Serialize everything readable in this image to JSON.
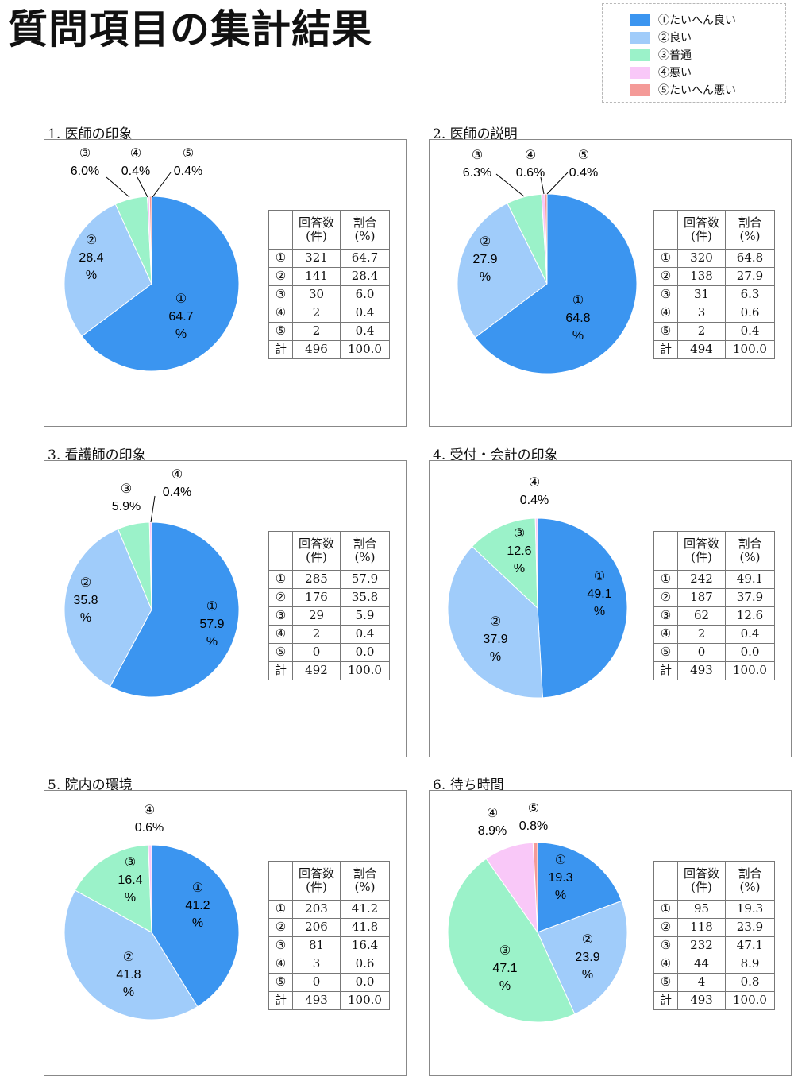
{
  "page_title": "質問項目の集計結果",
  "legend": {
    "items": [
      {
        "label": "①たいへん良い",
        "color": "#3B95F0"
      },
      {
        "label": "②良い",
        "color": "#A0CCFA"
      },
      {
        "label": "③普通",
        "color": "#9BF2C9"
      },
      {
        "label": "④悪い",
        "color": "#F9C8F8"
      },
      {
        "label": "⑤たいへん悪い",
        "color": "#F49A98"
      }
    ]
  },
  "table_headers": {
    "count": "回答数\n(件)",
    "ratio": "割合\n(%)"
  },
  "category_marks": [
    "①",
    "②",
    "③",
    "④",
    "⑤"
  ],
  "total_mark": "計",
  "chart_data": [
    {
      "type": "pie",
      "title": "1. 医師の印象",
      "categories": [
        "①",
        "②",
        "③",
        "④",
        "⑤"
      ],
      "values": [
        64.7,
        28.4,
        6.0,
        0.4,
        0.4
      ],
      "slice_labels": [
        {
          "mark": "①",
          "value": "64.7",
          "unit": "%"
        },
        {
          "mark": "②",
          "value": "28.4",
          "unit": "%"
        },
        {
          "mark": "③",
          "value": "6.0%",
          "unit": ""
        },
        {
          "mark": "④",
          "value": "0.4%",
          "unit": ""
        },
        {
          "mark": "⑤",
          "value": "0.4%",
          "unit": ""
        }
      ],
      "table": {
        "rows": [
          {
            "mark": "①",
            "count": "321",
            "pct": "64.7"
          },
          {
            "mark": "②",
            "count": "141",
            "pct": "28.4"
          },
          {
            "mark": "③",
            "count": "30",
            "pct": "6.0"
          },
          {
            "mark": "④",
            "count": "2",
            "pct": "0.4"
          },
          {
            "mark": "⑤",
            "count": "2",
            "pct": "0.4"
          }
        ],
        "total": {
          "count": "496",
          "pct": "100.0"
        }
      }
    },
    {
      "type": "pie",
      "title": "2. 医師の説明",
      "categories": [
        "①",
        "②",
        "③",
        "④",
        "⑤"
      ],
      "values": [
        64.8,
        27.9,
        6.3,
        0.6,
        0.4
      ],
      "slice_labels": [
        {
          "mark": "①",
          "value": "64.8",
          "unit": "%"
        },
        {
          "mark": "②",
          "value": "27.9",
          "unit": "%"
        },
        {
          "mark": "③",
          "value": "6.3%",
          "unit": ""
        },
        {
          "mark": "④",
          "value": "0.6%",
          "unit": ""
        },
        {
          "mark": "⑤",
          "value": "0.4%",
          "unit": ""
        }
      ],
      "table": {
        "rows": [
          {
            "mark": "①",
            "count": "320",
            "pct": "64.8"
          },
          {
            "mark": "②",
            "count": "138",
            "pct": "27.9"
          },
          {
            "mark": "③",
            "count": "31",
            "pct": "6.3"
          },
          {
            "mark": "④",
            "count": "3",
            "pct": "0.6"
          },
          {
            "mark": "⑤",
            "count": "2",
            "pct": "0.4"
          }
        ],
        "total": {
          "count": "494",
          "pct": "100.0"
        }
      }
    },
    {
      "type": "pie",
      "title": "3. 看護師の印象",
      "categories": [
        "①",
        "②",
        "③",
        "④",
        "⑤"
      ],
      "values": [
        57.9,
        35.8,
        5.9,
        0.4,
        0.0
      ],
      "slice_labels": [
        {
          "mark": "①",
          "value": "57.9",
          "unit": "%"
        },
        {
          "mark": "②",
          "value": "35.8",
          "unit": "%"
        },
        {
          "mark": "③",
          "value": "5.9%",
          "unit": ""
        },
        {
          "mark": "④",
          "value": "0.4%",
          "unit": ""
        }
      ],
      "table": {
        "rows": [
          {
            "mark": "①",
            "count": "285",
            "pct": "57.9"
          },
          {
            "mark": "②",
            "count": "176",
            "pct": "35.8"
          },
          {
            "mark": "③",
            "count": "29",
            "pct": "5.9"
          },
          {
            "mark": "④",
            "count": "2",
            "pct": "0.4"
          },
          {
            "mark": "⑤",
            "count": "0",
            "pct": "0.0"
          }
        ],
        "total": {
          "count": "492",
          "pct": "100.0"
        }
      }
    },
    {
      "type": "pie",
      "title": "4. 受付・会計の印象",
      "categories": [
        "①",
        "②",
        "③",
        "④",
        "⑤"
      ],
      "values": [
        49.1,
        37.9,
        12.6,
        0.4,
        0.0
      ],
      "slice_labels": [
        {
          "mark": "①",
          "value": "49.1",
          "unit": "%"
        },
        {
          "mark": "②",
          "value": "37.9",
          "unit": "%"
        },
        {
          "mark": "③",
          "value": "12.6",
          "unit": "%"
        },
        {
          "mark": "④",
          "value": "0.4%",
          "unit": ""
        }
      ],
      "table": {
        "rows": [
          {
            "mark": "①",
            "count": "242",
            "pct": "49.1"
          },
          {
            "mark": "②",
            "count": "187",
            "pct": "37.9"
          },
          {
            "mark": "③",
            "count": "62",
            "pct": "12.6"
          },
          {
            "mark": "④",
            "count": "2",
            "pct": "0.4"
          },
          {
            "mark": "⑤",
            "count": "0",
            "pct": "0.0"
          }
        ],
        "total": {
          "count": "493",
          "pct": "100.0"
        }
      }
    },
    {
      "type": "pie",
      "title": "5. 院内の環境",
      "categories": [
        "①",
        "②",
        "③",
        "④",
        "⑤"
      ],
      "values": [
        41.2,
        41.8,
        16.4,
        0.6,
        0.0
      ],
      "slice_labels": [
        {
          "mark": "①",
          "value": "41.2",
          "unit": "%"
        },
        {
          "mark": "②",
          "value": "41.8",
          "unit": "%"
        },
        {
          "mark": "③",
          "value": "16.4",
          "unit": "%"
        },
        {
          "mark": "④",
          "value": "0.6%",
          "unit": ""
        }
      ],
      "table": {
        "rows": [
          {
            "mark": "①",
            "count": "203",
            "pct": "41.2"
          },
          {
            "mark": "②",
            "count": "206",
            "pct": "41.8"
          },
          {
            "mark": "③",
            "count": "81",
            "pct": "16.4"
          },
          {
            "mark": "④",
            "count": "3",
            "pct": "0.6"
          },
          {
            "mark": "⑤",
            "count": "0",
            "pct": "0.0"
          }
        ],
        "total": {
          "count": "493",
          "pct": "100.0"
        }
      }
    },
    {
      "type": "pie",
      "title": "6. 待ち時間",
      "categories": [
        "①",
        "②",
        "③",
        "④",
        "⑤"
      ],
      "values": [
        19.3,
        23.9,
        47.1,
        8.9,
        0.8
      ],
      "slice_labels": [
        {
          "mark": "①",
          "value": "19.3",
          "unit": "%"
        },
        {
          "mark": "②",
          "value": "23.9",
          "unit": "%"
        },
        {
          "mark": "③",
          "value": "47.1",
          "unit": "%"
        },
        {
          "mark": "④",
          "value": "8.9%",
          "unit": ""
        },
        {
          "mark": "⑤",
          "value": "0.8%",
          "unit": ""
        }
      ],
      "table": {
        "rows": [
          {
            "mark": "①",
            "count": "95",
            "pct": "19.3"
          },
          {
            "mark": "②",
            "count": "118",
            "pct": "23.9"
          },
          {
            "mark": "③",
            "count": "232",
            "pct": "47.1"
          },
          {
            "mark": "④",
            "count": "44",
            "pct": "8.9"
          },
          {
            "mark": "⑤",
            "count": "4",
            "pct": "0.8"
          }
        ],
        "total": {
          "count": "493",
          "pct": "100.0"
        }
      }
    }
  ]
}
